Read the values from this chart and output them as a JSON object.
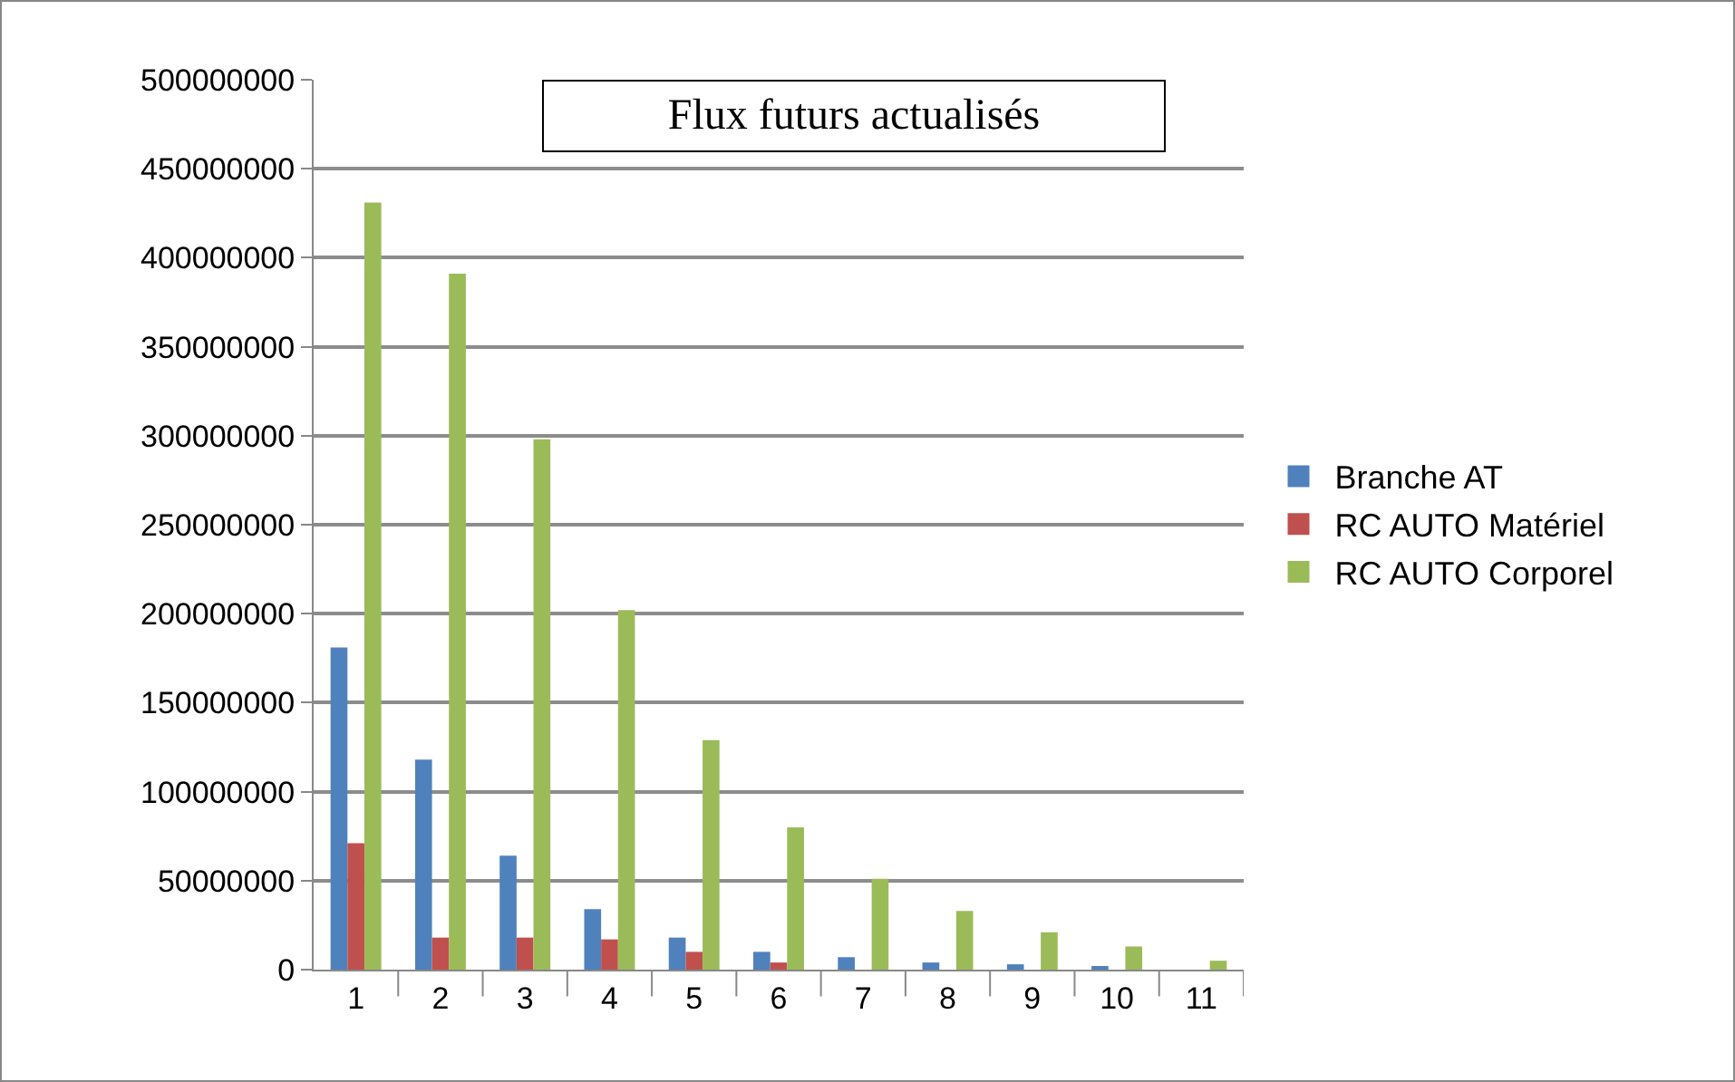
{
  "chart_data": {
    "type": "bar",
    "title": "Flux futurs actualisés",
    "categories": [
      "1",
      "2",
      "3",
      "4",
      "5",
      "6",
      "7",
      "8",
      "9",
      "10",
      "11"
    ],
    "series": [
      {
        "name": "Branche AT",
        "color": "#4f81bd",
        "values": [
          181000000,
          118000000,
          64000000,
          34000000,
          18000000,
          10000000,
          7000000,
          4000000,
          3000000,
          2000000,
          0
        ]
      },
      {
        "name": "RC AUTO Matériel",
        "color": "#c0504d",
        "values": [
          71000000,
          18000000,
          18000000,
          17000000,
          10000000,
          4000000,
          0,
          0,
          0,
          0,
          0
        ]
      },
      {
        "name": "RC AUTO Corporel",
        "color": "#9bbb59",
        "values": [
          431000000,
          391000000,
          298000000,
          202000000,
          129000000,
          80000000,
          51000000,
          33000000,
          21000000,
          13000000,
          5000000
        ]
      }
    ],
    "ylim": [
      0,
      500000000
    ],
    "yticks": [
      0,
      50000000,
      100000000,
      150000000,
      200000000,
      250000000,
      300000000,
      350000000,
      400000000,
      450000000,
      500000000
    ],
    "grid": "y",
    "legend": "right"
  }
}
